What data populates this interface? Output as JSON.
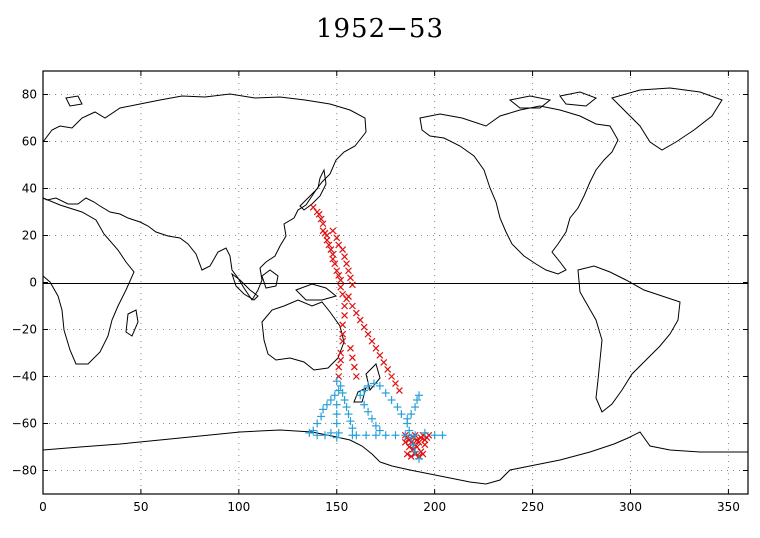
{
  "title": "1952−53",
  "chart_data": {
    "type": "scatter",
    "title": "1952−53",
    "xlabel": "",
    "ylabel": "",
    "xlim": [
      0,
      360
    ],
    "ylim": [
      -90,
      90
    ],
    "x_ticks": [
      "0",
      "50",
      "100",
      "150",
      "200",
      "250",
      "300",
      "350"
    ],
    "y_ticks": [
      "80",
      "60",
      "40",
      "20",
      "0",
      "−20",
      "−40",
      "−60",
      "−80"
    ],
    "grid": true,
    "background": "world coastline map (Pacific-centred)",
    "colors": {
      "red": "#e01010",
      "blue": "#2aa0d8",
      "coast": "#000000"
    },
    "series": [
      {
        "marker": "x",
        "color": "red",
        "points": [
          [
            138,
            32
          ],
          [
            140,
            30
          ],
          [
            141,
            29
          ],
          [
            142,
            27
          ],
          [
            143,
            25
          ],
          [
            143,
            22
          ],
          [
            144,
            21
          ],
          [
            145,
            20
          ],
          [
            145,
            18
          ],
          [
            146,
            16
          ],
          [
            147,
            14
          ],
          [
            148,
            12
          ],
          [
            148,
            10
          ],
          [
            149,
            8
          ],
          [
            150,
            5
          ],
          [
            151,
            3
          ],
          [
            152,
            1
          ],
          [
            152,
            -2
          ],
          [
            153,
            -5
          ],
          [
            155,
            -7
          ],
          [
            154,
            -10
          ],
          [
            154,
            -14
          ],
          [
            153,
            -18
          ],
          [
            153,
            -22
          ],
          [
            153,
            -25
          ],
          [
            152,
            -30
          ],
          [
            152,
            -33
          ],
          [
            151,
            -36
          ],
          [
            151,
            -40
          ],
          [
            156,
            -6
          ],
          [
            158,
            -10
          ],
          [
            160,
            -13
          ],
          [
            162,
            -16
          ],
          [
            164,
            -19
          ],
          [
            166,
            -22
          ],
          [
            168,
            -25
          ],
          [
            170,
            -28
          ],
          [
            172,
            -31
          ],
          [
            174,
            -34
          ],
          [
            176,
            -37
          ],
          [
            178,
            -40
          ],
          [
            180,
            -43
          ],
          [
            182,
            -46
          ],
          [
            148,
            22
          ],
          [
            150,
            19
          ],
          [
            151,
            16
          ],
          [
            153,
            14
          ],
          [
            154,
            11
          ],
          [
            155,
            8
          ],
          [
            156,
            5
          ],
          [
            157,
            2
          ],
          [
            158,
            -1
          ],
          [
            157,
            -28
          ],
          [
            158,
            -32
          ],
          [
            159,
            -36
          ],
          [
            160,
            -40
          ],
          [
            185,
            -65
          ],
          [
            186,
            -66
          ],
          [
            187,
            -67
          ],
          [
            188,
            -68
          ],
          [
            189,
            -66
          ],
          [
            190,
            -65
          ],
          [
            191,
            -67
          ],
          [
            192,
            -68
          ],
          [
            193,
            -66
          ],
          [
            194,
            -65
          ],
          [
            195,
            -67
          ],
          [
            196,
            -66
          ],
          [
            187,
            -70
          ],
          [
            189,
            -71
          ],
          [
            191,
            -70
          ],
          [
            193,
            -72
          ],
          [
            186,
            -73
          ],
          [
            188,
            -74
          ],
          [
            190,
            -73
          ],
          [
            192,
            -74
          ],
          [
            194,
            -73
          ],
          [
            185,
            -68
          ],
          [
            190,
            -69
          ],
          [
            195,
            -69
          ],
          [
            197,
            -65
          ]
        ]
      },
      {
        "marker": "+",
        "color": "blue",
        "points": [
          [
            138,
            -63
          ],
          [
            140,
            -60
          ],
          [
            142,
            -57
          ],
          [
            143,
            -54
          ],
          [
            145,
            -52
          ],
          [
            147,
            -50
          ],
          [
            149,
            -48
          ],
          [
            151,
            -46
          ],
          [
            152,
            -44
          ],
          [
            150,
            -42
          ],
          [
            150,
            -52
          ],
          [
            150,
            -56
          ],
          [
            150,
            -60
          ],
          [
            151,
            -64
          ],
          [
            150,
            -66
          ],
          [
            153,
            -47
          ],
          [
            154,
            -50
          ],
          [
            155,
            -53
          ],
          [
            156,
            -56
          ],
          [
            157,
            -59
          ],
          [
            158,
            -62
          ],
          [
            158,
            -65
          ],
          [
            160,
            -65
          ],
          [
            165,
            -65
          ],
          [
            170,
            -65
          ],
          [
            175,
            -65
          ],
          [
            180,
            -65
          ],
          [
            185,
            -65
          ],
          [
            190,
            -65
          ],
          [
            195,
            -64
          ],
          [
            200,
            -65
          ],
          [
            204,
            -65
          ],
          [
            162,
            -48
          ],
          [
            164,
            -46
          ],
          [
            166,
            -44
          ],
          [
            169,
            -43
          ],
          [
            172,
            -44
          ],
          [
            175,
            -47
          ],
          [
            178,
            -50
          ],
          [
            181,
            -53
          ],
          [
            183,
            -56
          ],
          [
            186,
            -58
          ],
          [
            188,
            -56
          ],
          [
            190,
            -53
          ],
          [
            191,
            -50
          ],
          [
            192,
            -48
          ],
          [
            164,
            -52
          ],
          [
            166,
            -55
          ],
          [
            168,
            -58
          ],
          [
            170,
            -61
          ],
          [
            172,
            -63
          ],
          [
            140,
            -65
          ],
          [
            144,
            -65
          ],
          [
            147,
            -64
          ],
          [
            136,
            -64
          ],
          [
            186,
            -60
          ],
          [
            187,
            -63
          ],
          [
            188,
            -66
          ],
          [
            189,
            -69
          ],
          [
            190,
            -72
          ],
          [
            192,
            -75
          ]
        ]
      }
    ]
  }
}
